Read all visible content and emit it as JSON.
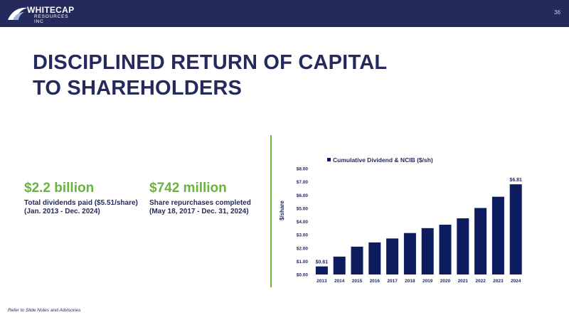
{
  "header": {
    "logo_line1": "WHITECAP",
    "logo_line2": "RESOURCES INC",
    "page_number": "36"
  },
  "title": {
    "line1": "DISCIPLINED RETURN OF CAPITAL",
    "line2": "TO SHAREHOLDERS"
  },
  "stats": [
    {
      "value": "$2.2 billion",
      "desc_line1": "Total dividends paid ($5.51/share)",
      "desc_line2": "(Jan. 2013 - Dec. 2024)"
    },
    {
      "value": "$742 million",
      "desc_line1": "Share repurchases completed",
      "desc_line2": "(May 18, 2017 - Dec. 31, 2024)"
    }
  ],
  "colors": {
    "navy": "#242b5c",
    "green": "#6ab43e",
    "bar": "#0d1c5e"
  },
  "footnote": "Refer to Slide Notes and Advisories",
  "chart_data": {
    "type": "bar",
    "categories": [
      "2013",
      "2014",
      "2015",
      "2016",
      "2017",
      "2018",
      "2019",
      "2020",
      "2021",
      "2022",
      "2023",
      "2024"
    ],
    "series": [
      {
        "name": "Cumulative Dividend & NCIB ($/sh)",
        "values": [
          0.61,
          1.35,
          2.1,
          2.42,
          2.72,
          3.13,
          3.5,
          3.76,
          4.24,
          5.02,
          5.87,
          6.81
        ]
      }
    ],
    "data_labels": {
      "first": "$0.61",
      "last": "$6.81"
    },
    "ylabel": "$/share",
    "xlabel": "",
    "ylim": [
      0,
      8
    ],
    "yticks": [
      "$0.00",
      "$1.00",
      "$2.00",
      "$3.00",
      "$4.00",
      "$5.00",
      "$6.00",
      "$7.00",
      "$8.00"
    ],
    "legend_position": "top",
    "grid": false
  }
}
